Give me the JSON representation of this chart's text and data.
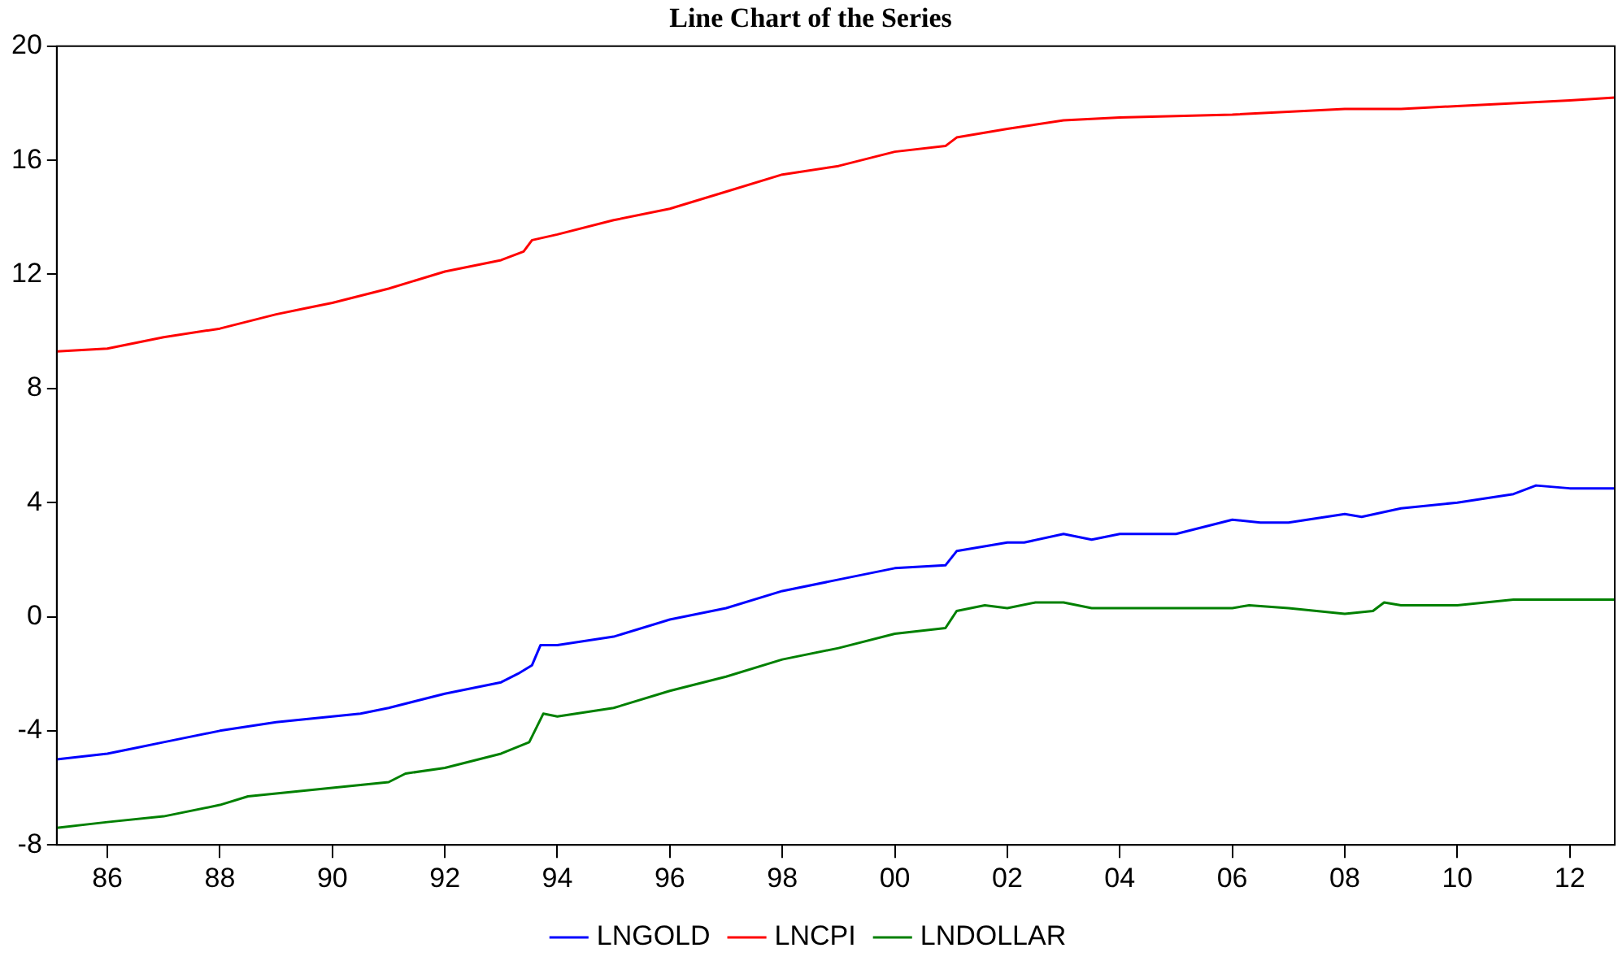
{
  "chart_data": {
    "type": "line",
    "title": "Line Chart of the Series",
    "xlim": [
      1985.1,
      2012.8
    ],
    "xticks": [
      {
        "value": 1986,
        "label": "86"
      },
      {
        "value": 1988,
        "label": "88"
      },
      {
        "value": 1990,
        "label": "90"
      },
      {
        "value": 1992,
        "label": "92"
      },
      {
        "value": 1994,
        "label": "94"
      },
      {
        "value": 1996,
        "label": "96"
      },
      {
        "value": 1998,
        "label": "98"
      },
      {
        "value": 2000,
        "label": "00"
      },
      {
        "value": 2002,
        "label": "02"
      },
      {
        "value": 2004,
        "label": "04"
      },
      {
        "value": 2006,
        "label": "06"
      },
      {
        "value": 2008,
        "label": "08"
      },
      {
        "value": 2010,
        "label": "10"
      },
      {
        "value": 2012,
        "label": "12"
      }
    ],
    "ylim": [
      -8,
      20
    ],
    "yticks": [
      -8,
      -4,
      0,
      4,
      8,
      12,
      16,
      20
    ],
    "grid": false,
    "legend": "bottom",
    "marker": "none",
    "line_style": "solid",
    "series": [
      {
        "name": "LNGOLD",
        "color": "#0000ff",
        "x": [
          1985.1,
          1986,
          1986.5,
          1987,
          1988,
          1989,
          1990,
          1990.5,
          1991,
          1992,
          1993,
          1993.3,
          1993.55,
          1993.7,
          1994,
          1995,
          1996,
          1997,
          1998,
          1999,
          2000,
          2000.9,
          2001.1,
          2002,
          2002.3,
          2003,
          2003.5,
          2004,
          2005,
          2006,
          2006.5,
          2007,
          2008,
          2008.3,
          2009,
          2010,
          2011,
          2011.4,
          2012,
          2012.8
        ],
        "values": [
          -5.0,
          -4.8,
          -4.6,
          -4.4,
          -4.0,
          -3.7,
          -3.5,
          -3.4,
          -3.2,
          -2.7,
          -2.3,
          -2.0,
          -1.7,
          -1.0,
          -1.0,
          -0.7,
          -0.1,
          0.3,
          0.9,
          1.3,
          1.7,
          1.8,
          2.3,
          2.6,
          2.6,
          2.9,
          2.7,
          2.9,
          2.9,
          3.4,
          3.3,
          3.3,
          3.6,
          3.5,
          3.8,
          4.0,
          4.3,
          4.6,
          4.5,
          4.5
        ]
      },
      {
        "name": "LNCPI",
        "color": "#ff0000",
        "x": [
          1985.1,
          1986,
          1987,
          1988,
          1989,
          1989.5,
          1990,
          1991,
          1992,
          1993,
          1993.4,
          1993.55,
          1994,
          1995,
          1996,
          1997,
          1998,
          1999,
          2000,
          2000.9,
          2001.1,
          2002,
          2003,
          2004,
          2006,
          2008,
          2009,
          2010,
          2011,
          2012,
          2012.8
        ],
        "values": [
          9.3,
          9.4,
          9.8,
          10.1,
          10.6,
          10.8,
          11.0,
          11.5,
          12.1,
          12.5,
          12.8,
          13.2,
          13.4,
          13.9,
          14.3,
          14.9,
          15.5,
          15.8,
          16.3,
          16.5,
          16.8,
          17.1,
          17.4,
          17.5,
          17.6,
          17.8,
          17.8,
          17.9,
          18.0,
          18.1,
          18.2
        ]
      },
      {
        "name": "LNDOLLAR",
        "color": "#008000",
        "x": [
          1985.1,
          1986,
          1987,
          1988,
          1988.5,
          1989,
          1990,
          1991,
          1991.3,
          1992,
          1993,
          1993.5,
          1993.75,
          1994,
          1995,
          1996,
          1997,
          1998,
          1999,
          2000,
          2000.9,
          2001.1,
          2001.6,
          2002,
          2002.5,
          2003,
          2003.5,
          2004,
          2005,
          2006,
          2006.3,
          2007,
          2008,
          2008.5,
          2008.7,
          2009,
          2010,
          2011,
          2012,
          2012.8
        ],
        "values": [
          -7.4,
          -7.2,
          -7.0,
          -6.6,
          -6.3,
          -6.2,
          -6.0,
          -5.8,
          -5.5,
          -5.3,
          -4.8,
          -4.4,
          -3.4,
          -3.5,
          -3.2,
          -2.6,
          -2.1,
          -1.5,
          -1.1,
          -0.6,
          -0.4,
          0.2,
          0.4,
          0.3,
          0.5,
          0.5,
          0.3,
          0.3,
          0.3,
          0.3,
          0.4,
          0.3,
          0.1,
          0.2,
          0.5,
          0.4,
          0.4,
          0.6,
          0.6,
          0.6
        ]
      }
    ]
  }
}
